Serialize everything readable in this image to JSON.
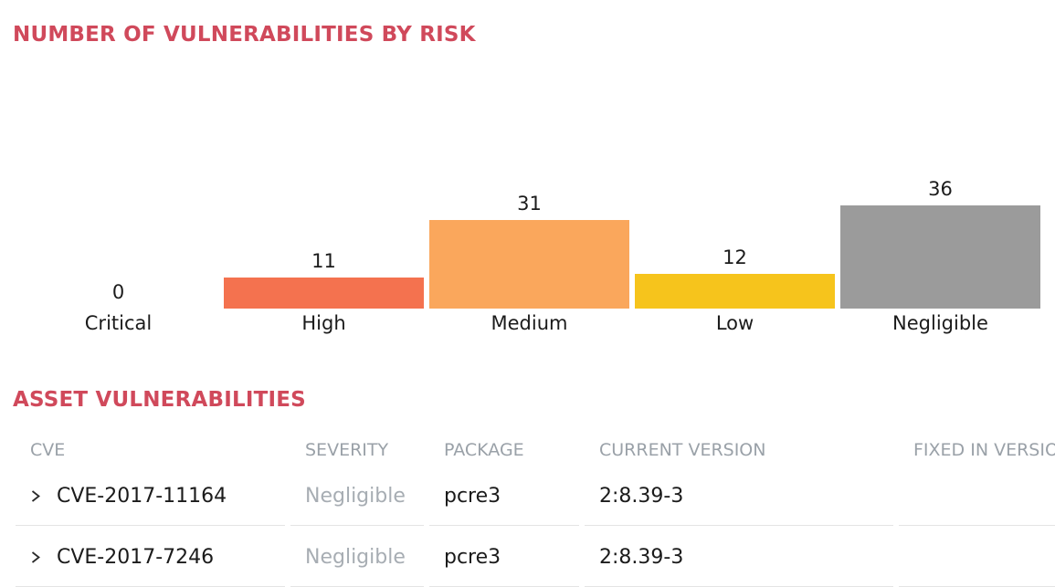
{
  "theme": {
    "accent_color": "#d0495b",
    "text_color": "#1b1b1b",
    "muted_text_color": "#a7adb3",
    "header_text_color": "#9aa1a8",
    "divider_color": "#e4e4e4"
  },
  "chart_section": {
    "title": "NUMBER OF VULNERABILITIES BY RISK"
  },
  "chart_data": {
    "type": "bar",
    "title": "NUMBER OF VULNERABILITIES BY RISK",
    "categories": [
      "Critical",
      "High",
      "Medium",
      "Low",
      "Negligible"
    ],
    "values": [
      0,
      11,
      31,
      12,
      36
    ],
    "bar_colors": [
      null,
      "#f4724f",
      "#faa75c",
      "#f6c41c",
      "#9b9b9b"
    ],
    "ylim": [
      0,
      36
    ],
    "grid": false,
    "legend": false,
    "axis_lines": false,
    "data_labels_position": "above-bar"
  },
  "table_section": {
    "title": "ASSET VULNERABILITIES",
    "columns": [
      "CVE",
      "SEVERITY",
      "PACKAGE",
      "CURRENT VERSION",
      "FIXED IN VERSION"
    ],
    "rows": [
      {
        "cve": "CVE-2017-11164",
        "severity": "Negligible",
        "package": "pcre3",
        "current_version": "2:8.39-3",
        "fixed_in_version": ""
      },
      {
        "cve": "CVE-2017-7246",
        "severity": "Negligible",
        "package": "pcre3",
        "current_version": "2:8.39-3",
        "fixed_in_version": ""
      }
    ]
  },
  "icons": {
    "row_expander": "chevron-right"
  }
}
